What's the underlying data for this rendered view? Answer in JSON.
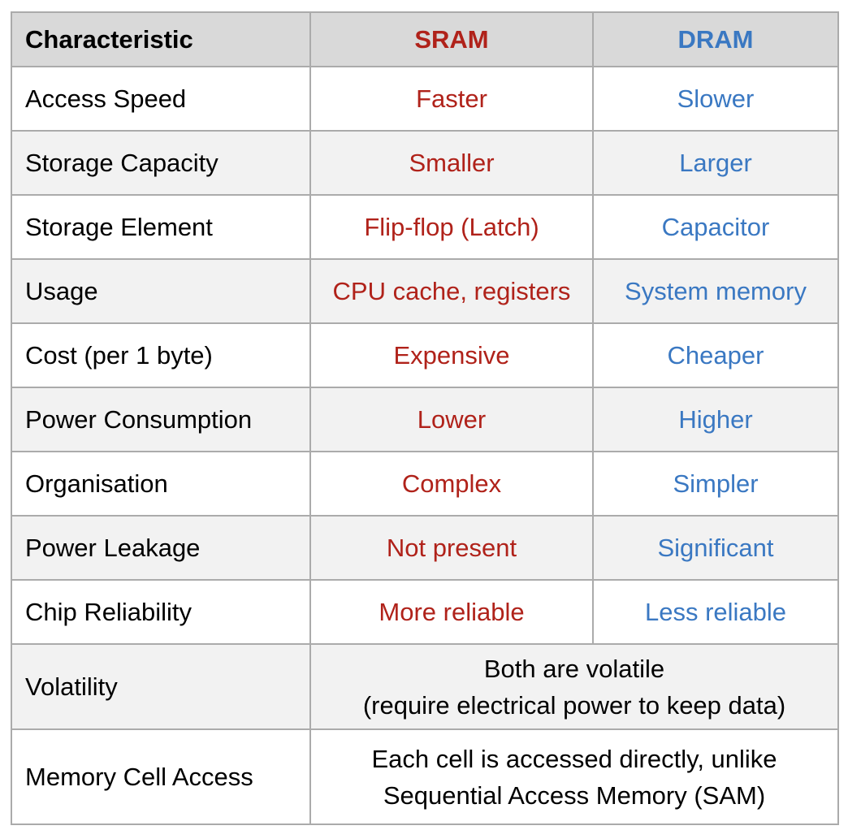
{
  "header": {
    "characteristic": "Characteristic",
    "sram": "SRAM",
    "dram": "DRAM"
  },
  "colors": {
    "sram": "#b0221a",
    "dram": "#3a78c2",
    "header_bg": "#d9d9d9",
    "alt_row_bg": "#f2f2f2",
    "border": "#ababab"
  },
  "rows": [
    {
      "label": "Access Speed",
      "sram": "Faster",
      "dram": "Slower"
    },
    {
      "label": "Storage Capacity",
      "sram": "Smaller",
      "dram": "Larger"
    },
    {
      "label": "Storage Element",
      "sram": "Flip-flop (Latch)",
      "dram": "Capacitor"
    },
    {
      "label": "Usage",
      "sram": "CPU cache, registers",
      "dram": "System memory"
    },
    {
      "label": "Cost (per 1 byte)",
      "sram": "Expensive",
      "dram": "Cheaper"
    },
    {
      "label": "Power Consumption",
      "sram": "Lower",
      "dram": "Higher"
    },
    {
      "label": "Organisation",
      "sram": "Complex",
      "dram": "Simpler"
    },
    {
      "label": "Power Leakage",
      "sram": "Not present",
      "dram": "Significant"
    },
    {
      "label": "Chip Reliability",
      "sram": "More reliable",
      "dram": "Less reliable"
    }
  ],
  "shared_rows": [
    {
      "label": "Volatility",
      "line1": "Both are volatile",
      "line2": "(require electrical power to keep data)"
    },
    {
      "label": "Memory Cell Access",
      "line1": "Each cell is accessed directly, unlike",
      "line2": "Sequential Access Memory (SAM)"
    }
  ]
}
